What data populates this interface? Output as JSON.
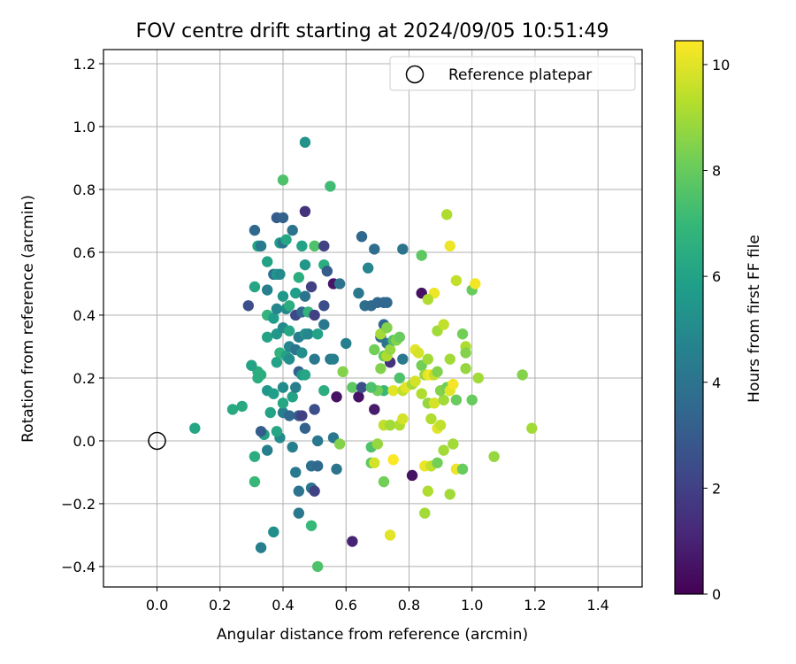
{
  "chart_data": {
    "type": "scatter",
    "title": "FOV centre drift starting at 2024/09/05 10:51:49",
    "xlabel": "Angular distance from reference (arcmin)",
    "ylabel": "Rotation from reference (arcmin)",
    "xlim": [
      -0.17,
      1.54
    ],
    "ylim": [
      -0.465,
      1.245
    ],
    "xticks": [
      0.0,
      0.2,
      0.4,
      0.6,
      0.8,
      1.0,
      1.2,
      1.4
    ],
    "xtick_labels": [
      "0.0",
      "0.2",
      "0.4",
      "0.6",
      "0.8",
      "1.0",
      "1.2",
      "1.4"
    ],
    "yticks": [
      -0.4,
      -0.2,
      0.0,
      0.2,
      0.4,
      0.6,
      0.8,
      1.0,
      1.2
    ],
    "ytick_labels": [
      "−0.4",
      "−0.2",
      "0.0",
      "0.2",
      "0.4",
      "0.6",
      "0.8",
      "1.0",
      "1.2"
    ],
    "grid": true,
    "legend": {
      "label": "Reference platepar",
      "placement": "top-right",
      "marker": "hollow-circle"
    },
    "reference_point": {
      "x": 0.0,
      "y": 0.0
    },
    "colorbar": {
      "label": "Hours from first FF file",
      "colormap": "viridis",
      "range": [
        0,
        10.45
      ],
      "ticks": [
        0,
        2,
        4,
        6,
        8,
        10
      ],
      "tick_labels": [
        "0",
        "2",
        "4",
        "6",
        "8",
        "10"
      ]
    },
    "points": [
      {
        "x": 0.51,
        "y": -0.4,
        "t": 7.5
      },
      {
        "x": 0.33,
        "y": -0.34,
        "t": 4.5
      },
      {
        "x": 0.37,
        "y": -0.29,
        "t": 5.2
      },
      {
        "x": 0.49,
        "y": -0.27,
        "t": 7.0
      },
      {
        "x": 0.45,
        "y": -0.23,
        "t": 4.2
      },
      {
        "x": 0.31,
        "y": -0.13,
        "t": 7.0
      },
      {
        "x": 0.45,
        "y": -0.16,
        "t": 4.0
      },
      {
        "x": 0.49,
        "y": -0.15,
        "t": 4.0
      },
      {
        "x": 0.5,
        "y": -0.16,
        "t": 2.0
      },
      {
        "x": 0.44,
        "y": -0.1,
        "t": 4.3
      },
      {
        "x": 0.49,
        "y": -0.08,
        "t": 3.8
      },
      {
        "x": 0.51,
        "y": -0.08,
        "t": 3.5
      },
      {
        "x": 0.57,
        "y": -0.09,
        "t": 4.0
      },
      {
        "x": 0.31,
        "y": -0.05,
        "t": 6.5
      },
      {
        "x": 0.35,
        "y": -0.03,
        "t": 4.5
      },
      {
        "x": 0.43,
        "y": -0.02,
        "t": 4.5
      },
      {
        "x": 0.39,
        "y": 0.01,
        "t": 5.0
      },
      {
        "x": 0.38,
        "y": 0.03,
        "t": 6.2
      },
      {
        "x": 0.34,
        "y": 0.02,
        "t": 6.0
      },
      {
        "x": 0.33,
        "y": 0.03,
        "t": 3.0
      },
      {
        "x": 0.47,
        "y": 0.04,
        "t": 3.3
      },
      {
        "x": 0.51,
        "y": 0.0,
        "t": 4.2
      },
      {
        "x": 0.56,
        "y": 0.01,
        "t": 4.2
      },
      {
        "x": 0.12,
        "y": 0.04,
        "t": 6.2
      },
      {
        "x": 0.24,
        "y": 0.1,
        "t": 6.3
      },
      {
        "x": 0.27,
        "y": 0.11,
        "t": 6.3
      },
      {
        "x": 0.36,
        "y": 0.09,
        "t": 6.0
      },
      {
        "x": 0.4,
        "y": 0.09,
        "t": 4.5
      },
      {
        "x": 0.42,
        "y": 0.08,
        "t": 3.5
      },
      {
        "x": 0.45,
        "y": 0.08,
        "t": 3.0
      },
      {
        "x": 0.46,
        "y": 0.08,
        "t": 2.0
      },
      {
        "x": 0.5,
        "y": 0.1,
        "t": 2.5
      },
      {
        "x": 0.4,
        "y": 0.12,
        "t": 6.2
      },
      {
        "x": 0.35,
        "y": 0.16,
        "t": 5.5
      },
      {
        "x": 0.37,
        "y": 0.15,
        "t": 5.8
      },
      {
        "x": 0.4,
        "y": 0.17,
        "t": 5.0
      },
      {
        "x": 0.43,
        "y": 0.14,
        "t": 6.0
      },
      {
        "x": 0.44,
        "y": 0.17,
        "t": 4.5
      },
      {
        "x": 0.32,
        "y": 0.2,
        "t": 6.5
      },
      {
        "x": 0.32,
        "y": 0.22,
        "t": 6.5
      },
      {
        "x": 0.3,
        "y": 0.24,
        "t": 6.0
      },
      {
        "x": 0.33,
        "y": 0.21,
        "t": 6.5
      },
      {
        "x": 0.38,
        "y": 0.25,
        "t": 6.0
      },
      {
        "x": 0.39,
        "y": 0.28,
        "t": 6.8
      },
      {
        "x": 0.41,
        "y": 0.27,
        "t": 6.0
      },
      {
        "x": 0.42,
        "y": 0.26,
        "t": 5.2
      },
      {
        "x": 0.42,
        "y": 0.3,
        "t": 4.8
      },
      {
        "x": 0.44,
        "y": 0.29,
        "t": 4.0
      },
      {
        "x": 0.45,
        "y": 0.22,
        "t": 3.2
      },
      {
        "x": 0.46,
        "y": 0.21,
        "t": 5.5
      },
      {
        "x": 0.47,
        "y": 0.21,
        "t": 6.2
      },
      {
        "x": 0.46,
        "y": 0.28,
        "t": 5.2
      },
      {
        "x": 0.5,
        "y": 0.26,
        "t": 4.2
      },
      {
        "x": 0.53,
        "y": 0.16,
        "t": 6.5
      },
      {
        "x": 0.55,
        "y": 0.26,
        "t": 4.2
      },
      {
        "x": 0.56,
        "y": 0.26,
        "t": 4.5
      },
      {
        "x": 0.57,
        "y": 0.14,
        "t": 0.5
      },
      {
        "x": 0.35,
        "y": 0.33,
        "t": 6.0
      },
      {
        "x": 0.38,
        "y": 0.34,
        "t": 5.5
      },
      {
        "x": 0.4,
        "y": 0.36,
        "t": 5.0
      },
      {
        "x": 0.42,
        "y": 0.35,
        "t": 6.2
      },
      {
        "x": 0.45,
        "y": 0.33,
        "t": 4.5
      },
      {
        "x": 0.47,
        "y": 0.34,
        "t": 5.3
      },
      {
        "x": 0.48,
        "y": 0.34,
        "t": 4.8
      },
      {
        "x": 0.51,
        "y": 0.34,
        "t": 6.0
      },
      {
        "x": 0.53,
        "y": 0.37,
        "t": 4.2
      },
      {
        "x": 0.29,
        "y": 0.43,
        "t": 2.5
      },
      {
        "x": 0.35,
        "y": 0.4,
        "t": 6.8
      },
      {
        "x": 0.37,
        "y": 0.39,
        "t": 5.8
      },
      {
        "x": 0.38,
        "y": 0.42,
        "t": 4.8
      },
      {
        "x": 0.4,
        "y": 0.46,
        "t": 5.5
      },
      {
        "x": 0.41,
        "y": 0.42,
        "t": 5.0
      },
      {
        "x": 0.42,
        "y": 0.43,
        "t": 6.5
      },
      {
        "x": 0.44,
        "y": 0.47,
        "t": 5.8
      },
      {
        "x": 0.44,
        "y": 0.4,
        "t": 2.3
      },
      {
        "x": 0.46,
        "y": 0.41,
        "t": 3.5
      },
      {
        "x": 0.47,
        "y": 0.46,
        "t": 4.0
      },
      {
        "x": 0.48,
        "y": 0.41,
        "t": 6.8
      },
      {
        "x": 0.5,
        "y": 0.4,
        "t": 2.0
      },
      {
        "x": 0.53,
        "y": 0.43,
        "t": 2.5
      },
      {
        "x": 0.31,
        "y": 0.49,
        "t": 6.2
      },
      {
        "x": 0.35,
        "y": 0.48,
        "t": 4.5
      },
      {
        "x": 0.37,
        "y": 0.53,
        "t": 3.8
      },
      {
        "x": 0.38,
        "y": 0.53,
        "t": 5.5
      },
      {
        "x": 0.39,
        "y": 0.53,
        "t": 5.0
      },
      {
        "x": 0.45,
        "y": 0.52,
        "t": 6.5
      },
      {
        "x": 0.47,
        "y": 0.56,
        "t": 5.5
      },
      {
        "x": 0.49,
        "y": 0.49,
        "t": 2.0
      },
      {
        "x": 0.53,
        "y": 0.56,
        "t": 6.5
      },
      {
        "x": 0.54,
        "y": 0.54,
        "t": 3.0
      },
      {
        "x": 0.56,
        "y": 0.5,
        "t": 0.6
      },
      {
        "x": 0.35,
        "y": 0.57,
        "t": 6.0
      },
      {
        "x": 0.32,
        "y": 0.62,
        "t": 6.0
      },
      {
        "x": 0.33,
        "y": 0.62,
        "t": 4.3
      },
      {
        "x": 0.39,
        "y": 0.63,
        "t": 5.8
      },
      {
        "x": 0.4,
        "y": 0.63,
        "t": 4.0
      },
      {
        "x": 0.41,
        "y": 0.64,
        "t": 6.2
      },
      {
        "x": 0.46,
        "y": 0.62,
        "t": 6.0
      },
      {
        "x": 0.5,
        "y": 0.62,
        "t": 7.5
      },
      {
        "x": 0.53,
        "y": 0.62,
        "t": 2.0
      },
      {
        "x": 0.31,
        "y": 0.67,
        "t": 3.5
      },
      {
        "x": 0.38,
        "y": 0.71,
        "t": 3.0
      },
      {
        "x": 0.4,
        "y": 0.71,
        "t": 3.3
      },
      {
        "x": 0.43,
        "y": 0.67,
        "t": 4.0
      },
      {
        "x": 0.47,
        "y": 0.73,
        "t": 1.5
      },
      {
        "x": 0.4,
        "y": 0.83,
        "t": 7.5
      },
      {
        "x": 0.55,
        "y": 0.81,
        "t": 7.2
      },
      {
        "x": 0.47,
        "y": 0.95,
        "t": 5.3
      },
      {
        "x": 0.58,
        "y": 0.5,
        "t": 4.0
      },
      {
        "x": 0.6,
        "y": 0.31,
        "t": 4.5
      },
      {
        "x": 0.59,
        "y": 0.22,
        "t": 8.5
      },
      {
        "x": 0.62,
        "y": 0.17,
        "t": 7.8
      },
      {
        "x": 0.64,
        "y": 0.14,
        "t": 0.5
      },
      {
        "x": 0.65,
        "y": 0.17,
        "t": 2.5
      },
      {
        "x": 0.69,
        "y": 0.1,
        "t": 0.8
      },
      {
        "x": 0.64,
        "y": 0.47,
        "t": 4.2
      },
      {
        "x": 0.65,
        "y": 0.65,
        "t": 3.5
      },
      {
        "x": 0.66,
        "y": 0.43,
        "t": 3.8
      },
      {
        "x": 0.68,
        "y": 0.43,
        "t": 3.6
      },
      {
        "x": 0.67,
        "y": 0.55,
        "t": 4.8
      },
      {
        "x": 0.69,
        "y": 0.61,
        "t": 3.8
      },
      {
        "x": 0.7,
        "y": 0.44,
        "t": 3.5
      },
      {
        "x": 0.72,
        "y": 0.44,
        "t": 3.4
      },
      {
        "x": 0.73,
        "y": 0.44,
        "t": 3.5
      },
      {
        "x": 0.72,
        "y": 0.37,
        "t": 3.5
      },
      {
        "x": 0.71,
        "y": 0.33,
        "t": 3.8
      },
      {
        "x": 0.73,
        "y": 0.31,
        "t": 4.0
      },
      {
        "x": 0.74,
        "y": 0.25,
        "t": 1.5
      },
      {
        "x": 0.72,
        "y": 0.16,
        "t": 7.0
      },
      {
        "x": 0.7,
        "y": 0.16,
        "t": 8.2
      },
      {
        "x": 0.68,
        "y": 0.17,
        "t": 7.5
      },
      {
        "x": 0.78,
        "y": 0.61,
        "t": 4.0
      },
      {
        "x": 0.84,
        "y": 0.59,
        "t": 7.8
      },
      {
        "x": 0.84,
        "y": 0.47,
        "t": 0.5
      },
      {
        "x": 0.78,
        "y": 0.26,
        "t": 4.2
      },
      {
        "x": 0.81,
        "y": -0.11,
        "t": 0.5
      },
      {
        "x": 0.62,
        "y": -0.32,
        "t": 1.0
      },
      {
        "x": 0.58,
        "y": -0.01,
        "t": 8.5
      },
      {
        "x": 0.68,
        "y": -0.02,
        "t": 7.5
      },
      {
        "x": 0.7,
        "y": -0.01,
        "t": 8.8
      },
      {
        "x": 0.68,
        "y": -0.07,
        "t": 7.8
      },
      {
        "x": 0.69,
        "y": -0.07,
        "t": 9.8
      },
      {
        "x": 0.72,
        "y": -0.13,
        "t": 8.2
      },
      {
        "x": 0.74,
        "y": -0.3,
        "t": 10.0
      },
      {
        "x": 0.75,
        "y": -0.06,
        "t": 10.4
      },
      {
        "x": 0.72,
        "y": 0.05,
        "t": 9.5
      },
      {
        "x": 0.74,
        "y": 0.05,
        "t": 9.0
      },
      {
        "x": 0.77,
        "y": 0.05,
        "t": 9.2
      },
      {
        "x": 0.78,
        "y": 0.07,
        "t": 9.8
      },
      {
        "x": 0.75,
        "y": 0.16,
        "t": 10.0
      },
      {
        "x": 0.77,
        "y": 0.2,
        "t": 7.5
      },
      {
        "x": 0.78,
        "y": 0.16,
        "t": 9.5
      },
      {
        "x": 0.79,
        "y": 0.17,
        "t": 10.0
      },
      {
        "x": 0.81,
        "y": 0.18,
        "t": 9.0
      },
      {
        "x": 0.82,
        "y": 0.19,
        "t": 9.8
      },
      {
        "x": 0.69,
        "y": 0.29,
        "t": 8.2
      },
      {
        "x": 0.71,
        "y": 0.23,
        "t": 8.5
      },
      {
        "x": 0.72,
        "y": 0.27,
        "t": 8.0
      },
      {
        "x": 0.73,
        "y": 0.27,
        "t": 9.2
      },
      {
        "x": 0.74,
        "y": 0.29,
        "t": 8.8
      },
      {
        "x": 0.75,
        "y": 0.32,
        "t": 7.5
      },
      {
        "x": 0.76,
        "y": 0.32,
        "t": 8.5
      },
      {
        "x": 0.77,
        "y": 0.33,
        "t": 8.0
      },
      {
        "x": 0.71,
        "y": 0.34,
        "t": 9.0
      },
      {
        "x": 0.73,
        "y": 0.36,
        "t": 8.5
      },
      {
        "x": 0.82,
        "y": 0.29,
        "t": 10.0
      },
      {
        "x": 0.83,
        "y": 0.28,
        "t": 9.8
      },
      {
        "x": 0.84,
        "y": 0.24,
        "t": 8.2
      },
      {
        "x": 0.85,
        "y": 0.21,
        "t": 8.8
      },
      {
        "x": 0.86,
        "y": 0.26,
        "t": 9.0
      },
      {
        "x": 0.86,
        "y": 0.21,
        "t": 10.0
      },
      {
        "x": 0.87,
        "y": 0.21,
        "t": 10.3
      },
      {
        "x": 0.88,
        "y": 0.21,
        "t": 9.5
      },
      {
        "x": 0.89,
        "y": 0.22,
        "t": 8.5
      },
      {
        "x": 0.84,
        "y": 0.15,
        "t": 9.2
      },
      {
        "x": 0.86,
        "y": 0.12,
        "t": 8.8
      },
      {
        "x": 0.87,
        "y": 0.07,
        "t": 9.2
      },
      {
        "x": 0.88,
        "y": 0.12,
        "t": 9.8
      },
      {
        "x": 0.89,
        "y": 0.04,
        "t": 10.0
      },
      {
        "x": 0.9,
        "y": 0.05,
        "t": 9.5
      },
      {
        "x": 0.91,
        "y": 0.13,
        "t": 9.0
      },
      {
        "x": 0.9,
        "y": 0.16,
        "t": 8.5
      },
      {
        "x": 0.92,
        "y": 0.17,
        "t": 8.2
      },
      {
        "x": 0.93,
        "y": 0.16,
        "t": 10.0
      },
      {
        "x": 0.94,
        "y": 0.18,
        "t": 10.3
      },
      {
        "x": 0.95,
        "y": 0.13,
        "t": 8.0
      },
      {
        "x": 0.85,
        "y": -0.08,
        "t": 10.2
      },
      {
        "x": 0.86,
        "y": -0.16,
        "t": 9.2
      },
      {
        "x": 0.85,
        "y": -0.23,
        "t": 9.0
      },
      {
        "x": 0.87,
        "y": -0.08,
        "t": 9.5
      },
      {
        "x": 0.89,
        "y": -0.07,
        "t": 8.2
      },
      {
        "x": 0.91,
        "y": -0.03,
        "t": 9.0
      },
      {
        "x": 0.93,
        "y": -0.17,
        "t": 9.0
      },
      {
        "x": 0.94,
        "y": -0.01,
        "t": 9.0
      },
      {
        "x": 0.95,
        "y": -0.09,
        "t": 10.2
      },
      {
        "x": 0.97,
        "y": -0.09,
        "t": 8.0
      },
      {
        "x": 0.88,
        "y": 0.47,
        "t": 10.2
      },
      {
        "x": 0.86,
        "y": 0.45,
        "t": 9.2
      },
      {
        "x": 0.89,
        "y": 0.35,
        "t": 9.0
      },
      {
        "x": 0.91,
        "y": 0.37,
        "t": 9.5
      },
      {
        "x": 0.93,
        "y": 0.26,
        "t": 9.0
      },
      {
        "x": 0.95,
        "y": 0.51,
        "t": 9.5
      },
      {
        "x": 0.98,
        "y": 0.3,
        "t": 9.2
      },
      {
        "x": 0.98,
        "y": 0.28,
        "t": 8.5
      },
      {
        "x": 0.97,
        "y": 0.34,
        "t": 8.2
      },
      {
        "x": 0.98,
        "y": 0.23,
        "t": 8.8
      },
      {
        "x": 1.0,
        "y": 0.48,
        "t": 8.0
      },
      {
        "x": 1.01,
        "y": 0.5,
        "t": 10.3
      },
      {
        "x": 1.0,
        "y": 0.13,
        "t": 8.0
      },
      {
        "x": 1.02,
        "y": 0.2,
        "t": 9.0
      },
      {
        "x": 0.92,
        "y": 0.72,
        "t": 9.2
      },
      {
        "x": 0.93,
        "y": 0.62,
        "t": 10.2
      },
      {
        "x": 1.07,
        "y": -0.05,
        "t": 8.8
      },
      {
        "x": 1.16,
        "y": 0.21,
        "t": 8.5
      },
      {
        "x": 1.19,
        "y": 0.04,
        "t": 9.0
      }
    ]
  }
}
